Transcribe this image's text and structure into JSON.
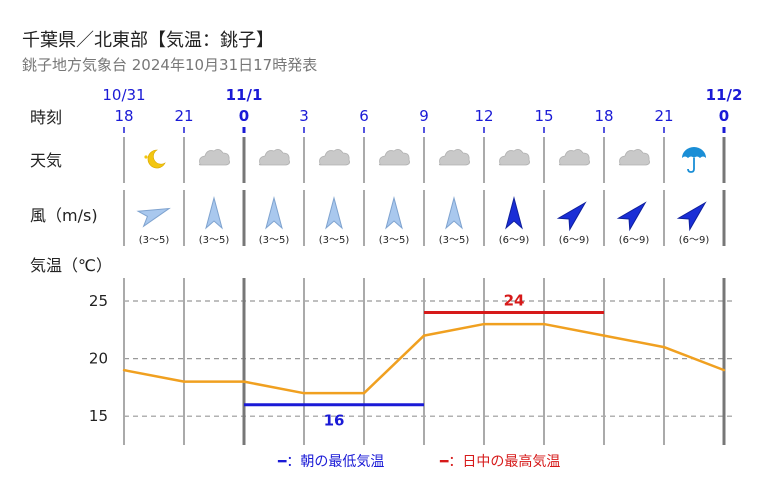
{
  "header": {
    "title": "千葉県／北東部【気温：銚子】",
    "subtitle": "銚子地方気象台 2024年10月31日17時発表"
  },
  "row_labels": {
    "time": "時刻",
    "weather": "天気",
    "wind": "風（m/s)",
    "temp": "気温（℃）"
  },
  "legend": {
    "min": "━：朝の最低気温",
    "max": "━：日中の最高気温"
  },
  "colors": {
    "line": "#f0a020",
    "min": "#1a1ad6",
    "max": "#d61a1a",
    "hour": "#1a1ad6"
  },
  "chart_data": {
    "type": "line",
    "dates": [
      {
        "label": "10/31",
        "bold": false,
        "at_index": 0
      },
      {
        "label": "11/1",
        "bold": true,
        "at_index": 2
      },
      {
        "label": "11/2",
        "bold": true,
        "at_index": 10
      }
    ],
    "x": [
      "18",
      "21",
      "0",
      "3",
      "6",
      "9",
      "12",
      "15",
      "18",
      "21",
      "0"
    ],
    "x_bold": [
      false,
      false,
      true,
      false,
      false,
      false,
      false,
      false,
      false,
      false,
      true
    ],
    "weather": [
      "moon-icon",
      "cloud-icon",
      "cloud-icon",
      "cloud-icon",
      "cloud-icon",
      "cloud-icon",
      "cloud-icon",
      "cloud-icon",
      "cloud-icon",
      "umbrella-icon"
    ],
    "wind": [
      {
        "direction_deg": 250,
        "speed": "(3〜5)",
        "strong": false
      },
      {
        "direction_deg": 180,
        "speed": "(3〜5)",
        "strong": false
      },
      {
        "direction_deg": 180,
        "speed": "(3〜5)",
        "strong": false
      },
      {
        "direction_deg": 180,
        "speed": "(3〜5)",
        "strong": false
      },
      {
        "direction_deg": 180,
        "speed": "(3〜5)",
        "strong": false
      },
      {
        "direction_deg": 180,
        "speed": "(3〜5)",
        "strong": false
      },
      {
        "direction_deg": 180,
        "speed": "(6〜9)",
        "strong": true
      },
      {
        "direction_deg": 225,
        "speed": "(6〜9)",
        "strong": true
      },
      {
        "direction_deg": 225,
        "speed": "(6〜9)",
        "strong": true
      },
      {
        "direction_deg": 225,
        "speed": "(6〜9)",
        "strong": true
      }
    ],
    "temperature": [
      19,
      18,
      18,
      17,
      17,
      22,
      23,
      23,
      22,
      21,
      19
    ],
    "ylim": [
      12.5,
      27
    ],
    "yticks": [
      15,
      20,
      25
    ],
    "min_temp": {
      "value": 16,
      "label": "16",
      "from_index": 2,
      "to_index": 5
    },
    "max_temp": {
      "value": 24,
      "label": "24",
      "from_index": 5,
      "to_index": 8
    }
  }
}
